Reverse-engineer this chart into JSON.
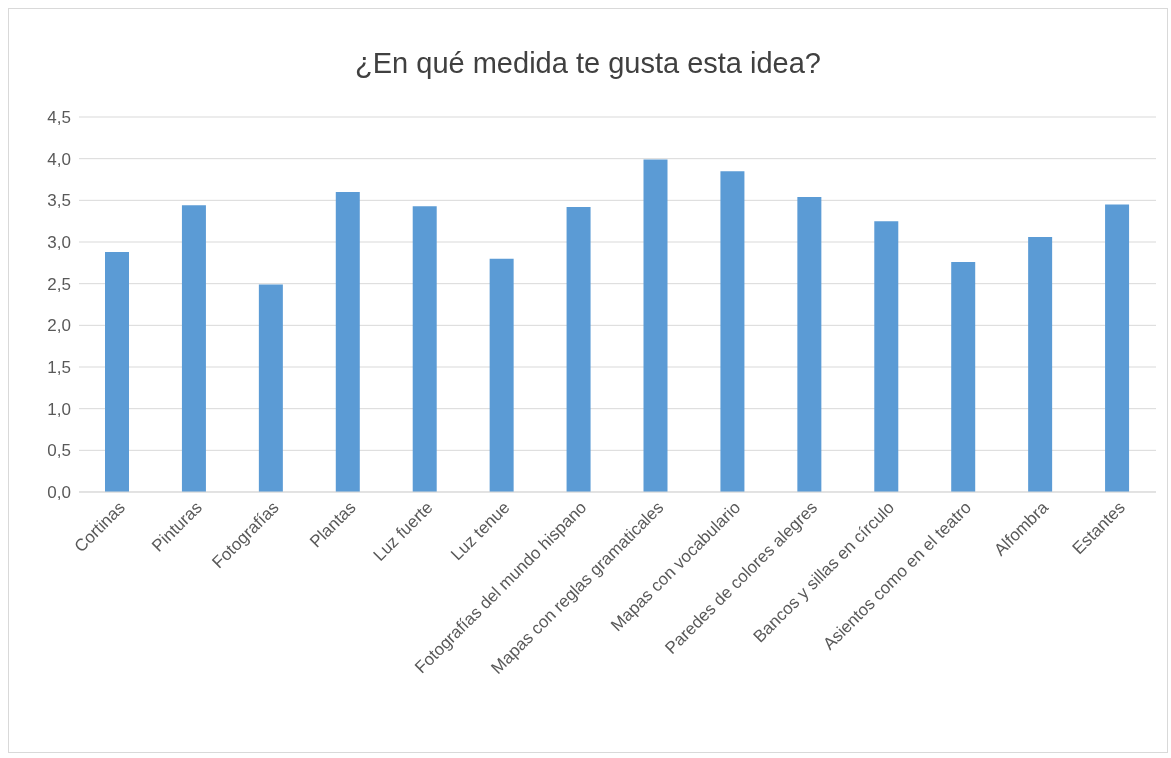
{
  "chart_data": {
    "type": "bar",
    "title": "¿En qué medida te gusta esta idea?",
    "categories": [
      "Cortinas",
      "Pinturas",
      "Fotografías",
      "Plantas",
      "Luz fuerte",
      "Luz tenue",
      "Fotografías del mundo hispano",
      "Mapas con reglas gramaticales",
      "Mapas con vocabulario",
      "Paredes de colores alegres",
      "Bancos y sillas en círculo",
      "Asientos como en el teatro",
      "Alfombra",
      "Estantes"
    ],
    "values": [
      2.88,
      3.44,
      2.49,
      3.6,
      3.43,
      2.8,
      3.42,
      3.99,
      3.85,
      3.54,
      3.25,
      2.76,
      3.06,
      3.45
    ],
    "color": "#5b9bd5",
    "ylim": [
      0,
      4.5
    ],
    "yticks": [
      {
        "value": 0,
        "label": "0,0"
      },
      {
        "value": 0.5,
        "label": "0,5"
      },
      {
        "value": 1,
        "label": "1,0"
      },
      {
        "value": 1.5,
        "label": "1,5"
      },
      {
        "value": 2,
        "label": "2,0"
      },
      {
        "value": 2.5,
        "label": "2,5"
      },
      {
        "value": 3,
        "label": "3,0"
      },
      {
        "value": 3.5,
        "label": "3,5"
      },
      {
        "value": 4,
        "label": "4,0"
      },
      {
        "value": 4.5,
        "label": "4,5"
      }
    ],
    "grid": "y"
  }
}
